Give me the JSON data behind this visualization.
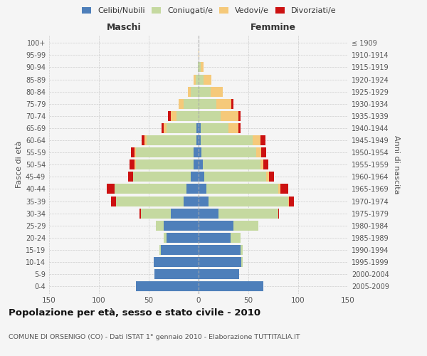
{
  "age_groups": [
    "0-4",
    "5-9",
    "10-14",
    "15-19",
    "20-24",
    "25-29",
    "30-34",
    "35-39",
    "40-44",
    "45-49",
    "50-54",
    "55-59",
    "60-64",
    "65-69",
    "70-74",
    "75-79",
    "80-84",
    "85-89",
    "90-94",
    "95-99",
    "100+"
  ],
  "birth_years": [
    "2005-2009",
    "2000-2004",
    "1995-1999",
    "1990-1994",
    "1985-1989",
    "1980-1984",
    "1975-1979",
    "1970-1974",
    "1965-1969",
    "1960-1964",
    "1955-1959",
    "1950-1954",
    "1945-1949",
    "1940-1944",
    "1935-1939",
    "1930-1934",
    "1925-1929",
    "1920-1924",
    "1915-1919",
    "1910-1914",
    "≤ 1909"
  ],
  "male": {
    "celibe": [
      63,
      44,
      45,
      38,
      32,
      35,
      28,
      15,
      12,
      8,
      5,
      5,
      2,
      2,
      0,
      0,
      0,
      0,
      0,
      0,
      0
    ],
    "coniugato": [
      0,
      0,
      0,
      1,
      3,
      8,
      30,
      68,
      72,
      58,
      58,
      58,
      50,
      30,
      22,
      15,
      8,
      3,
      1,
      0,
      0
    ],
    "vedovo": [
      0,
      0,
      0,
      0,
      0,
      0,
      0,
      0,
      0,
      0,
      1,
      1,
      2,
      3,
      6,
      5,
      3,
      2,
      0,
      0,
      0
    ],
    "divorziato": [
      0,
      0,
      0,
      0,
      0,
      0,
      1,
      5,
      8,
      5,
      5,
      4,
      3,
      2,
      3,
      0,
      0,
      0,
      0,
      0,
      0
    ]
  },
  "female": {
    "nubile": [
      65,
      41,
      43,
      42,
      32,
      35,
      20,
      10,
      8,
      6,
      4,
      3,
      2,
      2,
      0,
      0,
      0,
      0,
      0,
      0,
      0
    ],
    "coniugata": [
      0,
      0,
      1,
      2,
      10,
      25,
      60,
      80,
      72,
      62,
      58,
      55,
      52,
      28,
      22,
      18,
      12,
      5,
      2,
      0,
      0
    ],
    "vedova": [
      0,
      0,
      0,
      0,
      0,
      0,
      0,
      1,
      2,
      3,
      3,
      5,
      8,
      10,
      18,
      15,
      12,
      8,
      3,
      1,
      0
    ],
    "divorziata": [
      0,
      0,
      0,
      0,
      0,
      0,
      1,
      5,
      8,
      5,
      5,
      5,
      5,
      2,
      2,
      2,
      0,
      0,
      0,
      0,
      0
    ]
  },
  "colors": {
    "celibe_nubile": "#4e7fba",
    "coniugato": "#c5d9a0",
    "vedovo": "#f5c97a",
    "divorziato": "#cc1111"
  },
  "title": "Popolazione per età, sesso e stato civile - 2010",
  "subtitle": "COMUNE DI ORSENIGO (CO) - Dati ISTAT 1° gennaio 2010 - Elaborazione TUTTITALIA.IT",
  "ylabel_left": "Fasce di età",
  "ylabel_right": "Anni di nascita",
  "xlabel_left": "Maschi",
  "xlabel_right": "Femmine",
  "xlim": 150,
  "background_color": "#f5f5f5",
  "plot_bg": "#f5f5f5",
  "grid_color": "#cccccc"
}
